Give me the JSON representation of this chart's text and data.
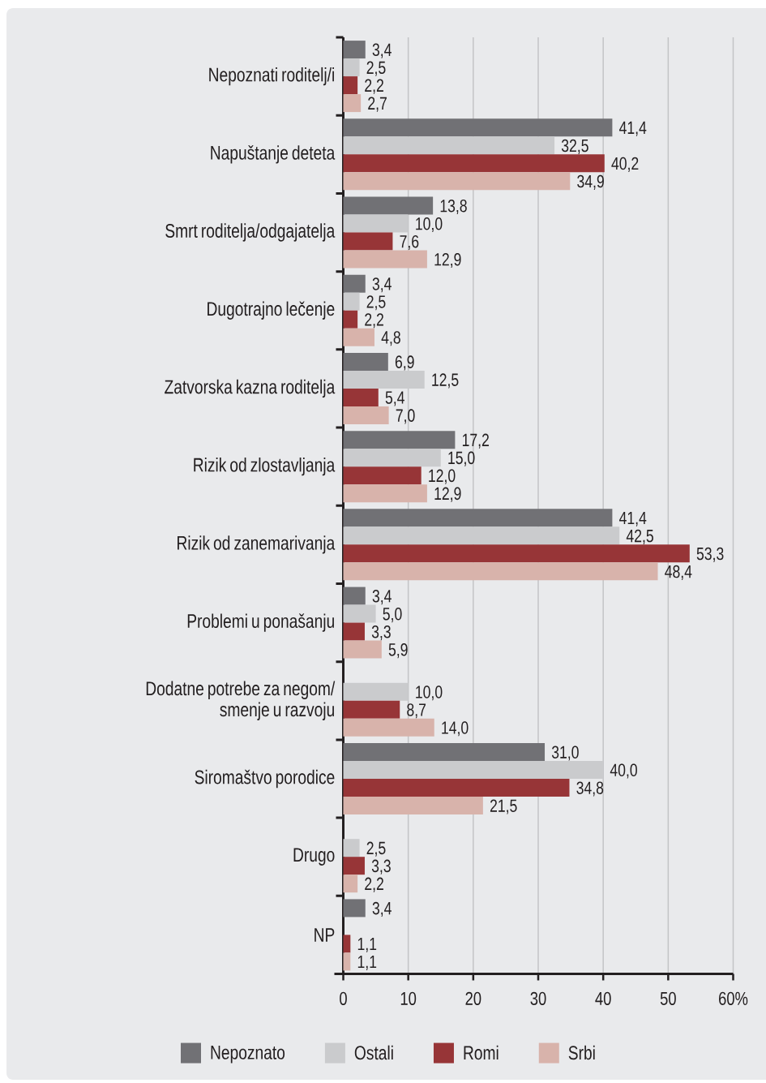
{
  "chart_data": {
    "type": "bar",
    "orientation": "horizontal",
    "categories": [
      "Nepoznati roditelj/i",
      "Napuštanje deteta",
      "Smrt roditelja/odgajatelja",
      "Dugotrajno lečenje",
      "Zatvorska kazna roditelja",
      "Rizik od zlostavljanja",
      "Rizik od zanemarivanja",
      "Problemi u ponašanju",
      "Dodatne potrebe za negom/ smenje u razvoju",
      "Siromaštvo porodice",
      "Drugo",
      "NP"
    ],
    "series": [
      {
        "name": "Nepoznato",
        "color": "#717175",
        "values": [
          3.4,
          41.4,
          13.8,
          3.4,
          6.9,
          17.2,
          41.4,
          3.4,
          null,
          31.0,
          null,
          3.4
        ],
        "value_labels": [
          "3,4",
          "41,4",
          "13,8",
          "3,4",
          "6,9",
          "17,2",
          "41,4",
          "3,4",
          null,
          "31,0",
          null,
          "3,4"
        ]
      },
      {
        "name": "Ostali",
        "color": "#cacbcd",
        "values": [
          2.5,
          32.5,
          10.0,
          2.5,
          12.5,
          15.0,
          42.5,
          5.0,
          10.0,
          40.0,
          2.5,
          null
        ],
        "value_labels": [
          "2,5",
          "32,5",
          "10,0",
          "2,5",
          "12,5",
          "15,0",
          "42,5",
          "5,0",
          "10,0",
          "40,0",
          "2,5",
          null
        ]
      },
      {
        "name": "Romi",
        "color": "#973537",
        "values": [
          2.2,
          40.2,
          7.6,
          2.2,
          5.4,
          12.0,
          53.3,
          3.3,
          8.7,
          34.8,
          3.3,
          1.1
        ],
        "value_labels": [
          "2,2",
          "40,2",
          "7,6",
          "2,2",
          "5,4",
          "12,0",
          "53,3",
          "3,3",
          "8,7",
          "34,8",
          "3,3",
          "1,1"
        ]
      },
      {
        "name": "Srbi",
        "color": "#d8b3ab",
        "values": [
          2.7,
          34.9,
          12.9,
          4.8,
          7.0,
          12.9,
          48.4,
          5.9,
          14.0,
          21.5,
          2.2,
          1.1
        ],
        "value_labels": [
          "2,7",
          "34,9",
          "12,9",
          "4,8",
          "7,0",
          "12,9",
          "48,4",
          "5,9",
          "14,0",
          "21,5",
          "2,2",
          "1,1"
        ]
      }
    ],
    "xlim": [
      0,
      60
    ],
    "xticks": [
      0,
      10,
      20,
      30,
      40,
      50,
      {
        "value": 60,
        "label": "60%"
      }
    ],
    "grid": "x",
    "legend": "bottom"
  }
}
